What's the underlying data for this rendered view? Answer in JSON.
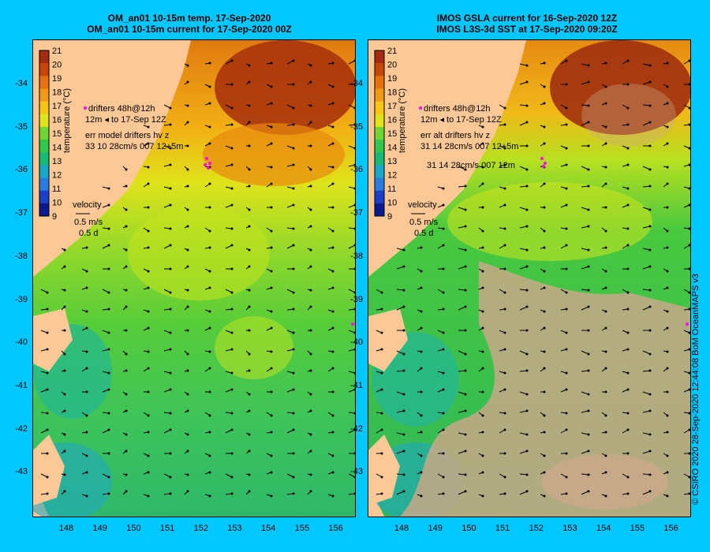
{
  "left": {
    "title1": "OM_an01 10-15m temp. 17-Sep-2020",
    "title2": "OM_an01 10-15m current for 17-Sep-2020 00Z",
    "legend_line1": "drifters 48h@12h",
    "legend_line2": "12m ◂ to 17-Sep 12Z",
    "err_line1": "err model drifters hv z",
    "err_line2": "33 10 28cm/s 007 12+5m",
    "err_line3": "",
    "velocity_label": "velocity",
    "velocity_value": "0.5 m/s",
    "velocity_time": "0.5 d",
    "colorbar_label": "temperature (°C)"
  },
  "right": {
    "title1": "IMOS GSLA current for 16-Sep-2020 12Z",
    "title2": "IMOS L3S-3d SST at 17-Sep-2020 09:20Z",
    "legend_line1": "drifters 48h@12h",
    "legend_line2": "12m ◂ to 17-Sep 12Z",
    "err_line1": "err alt drifters hv z",
    "err_line2": "31 14 28cm/s 007 12+5m",
    "err_line3": "31 14 28cm/s 007 12m",
    "velocity_label": "velocity",
    "velocity_value": "0.5 m/s",
    "velocity_time": "0.5 d",
    "colorbar_label": "temperature (°C)"
  },
  "colorbar_ticks": [
    "21",
    "20",
    "19",
    "18",
    "17",
    "16",
    "15",
    "14",
    "13",
    "12",
    "11",
    "10",
    "9"
  ],
  "colorbar_colors": [
    "#a52a12",
    "#c8460a",
    "#e6700a",
    "#f09a14",
    "#f7c514",
    "#dfe31a",
    "#70d633",
    "#30c84c",
    "#15b978",
    "#18a8c8",
    "#2a7ce0",
    "#1a40c8",
    "#0a1a90"
  ],
  "lat_labels": [
    "-34",
    "-35",
    "-36",
    "-37",
    "-38",
    "-39",
    "-40",
    "-41",
    "-42",
    "-43"
  ],
  "lon_labels": [
    "148",
    "149",
    "150",
    "151",
    "152",
    "153",
    "154",
    "155",
    "156"
  ],
  "credit": "© CSIRO 2020   28-Sep-2020 12:44:08 BoM OceanMAPS v3",
  "colors": {
    "frame_bg": "#00c8ff",
    "land": "#fcc896",
    "cloud": "#c8a888",
    "drifter": "#ff00ff"
  }
}
